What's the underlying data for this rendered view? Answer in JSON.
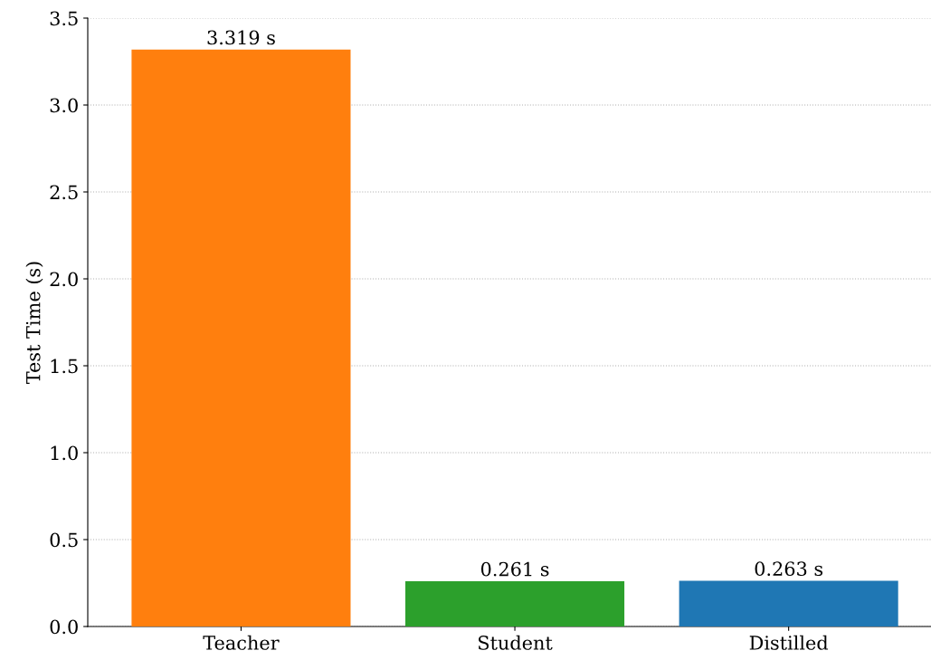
{
  "chart_data": {
    "type": "bar",
    "ylabel": "Test Time (s)",
    "categories": [
      "Teacher",
      "Student",
      "Distilled"
    ],
    "values": [
      3.319,
      0.261,
      0.263
    ],
    "colors": [
      "#ff7f0e",
      "#2ca02c",
      "#1f77b4"
    ],
    "value_labels": [
      "3.319 s",
      "0.261 s",
      "0.263 s"
    ],
    "ylim": [
      0,
      3.5
    ],
    "yticks": [
      {
        "value": 0,
        "label": "0.0"
      },
      0.5,
      {
        "value": 1,
        "label": "1.0"
      },
      1.5,
      {
        "value": 2,
        "label": "2.0"
      },
      2.5,
      {
        "value": 3,
        "label": "3.0"
      },
      3.5
    ],
    "grid": "y",
    "legend": false
  }
}
